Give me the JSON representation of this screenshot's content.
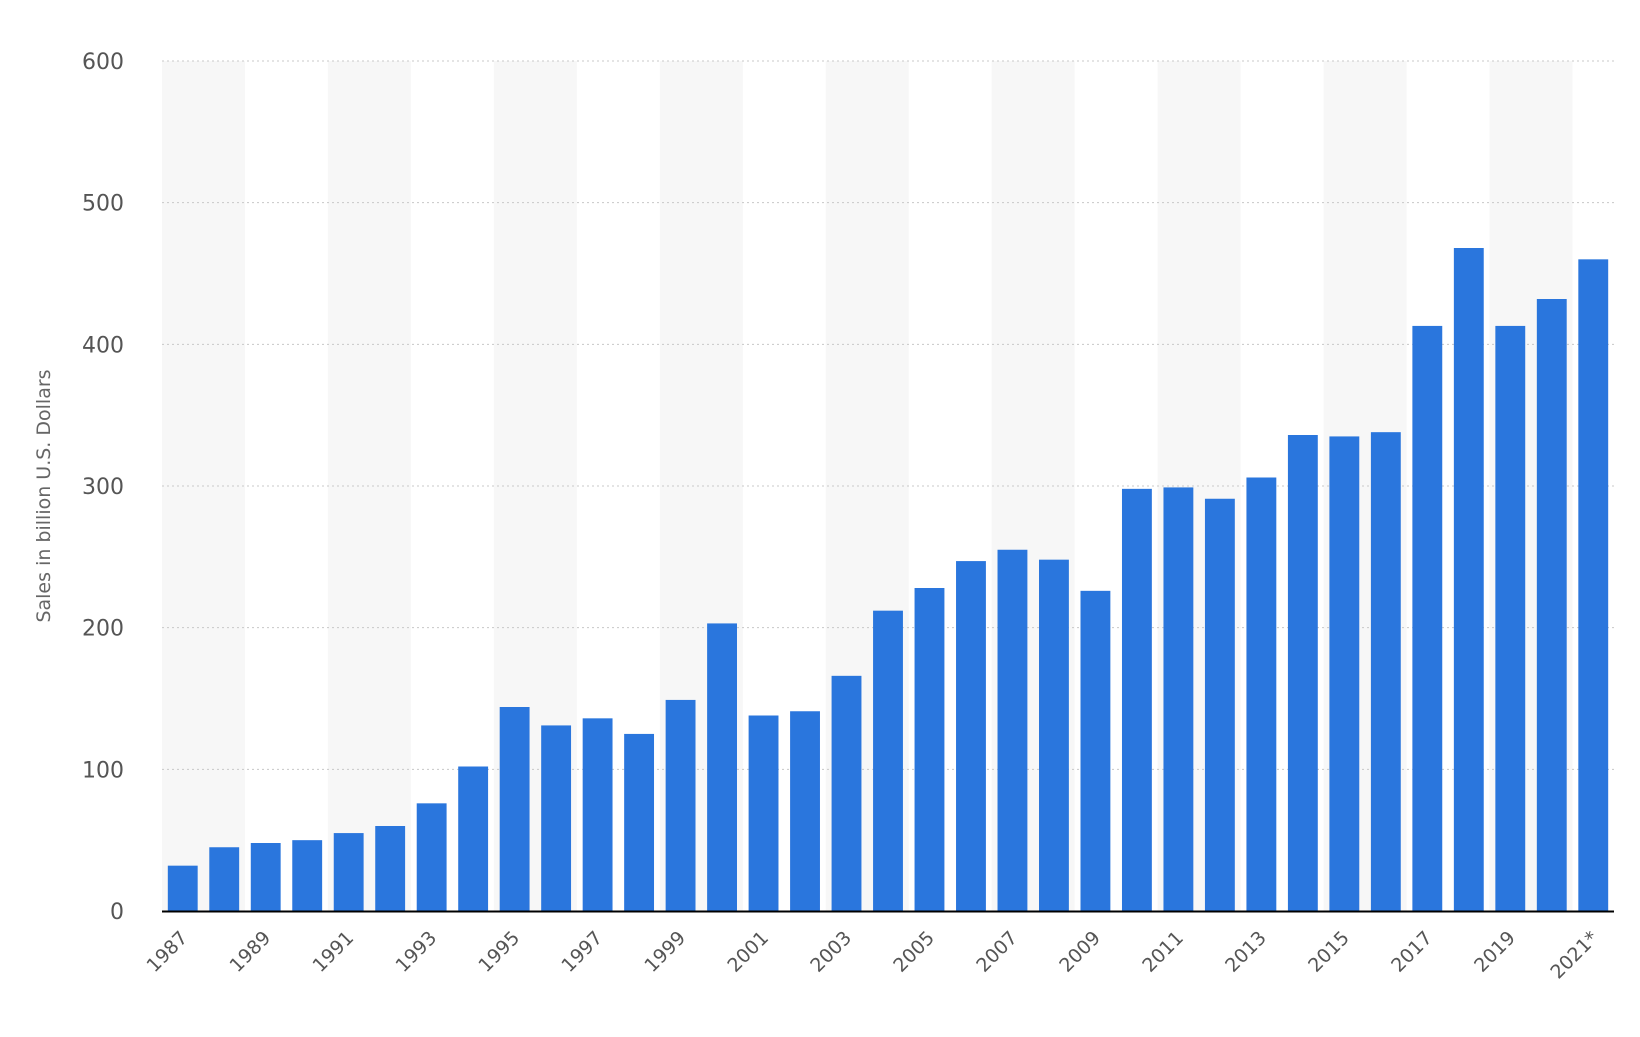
{
  "chart_data": {
    "type": "bar",
    "categories": [
      "1987",
      "1988",
      "1989",
      "1990",
      "1991",
      "1992",
      "1993",
      "1994",
      "1995",
      "1996",
      "1997",
      "1998",
      "1999",
      "2000",
      "2001",
      "2002",
      "2003",
      "2004",
      "2005",
      "2006",
      "2007",
      "2008",
      "2009",
      "2010",
      "2011",
      "2012",
      "2013",
      "2014",
      "2015",
      "2016",
      "2017",
      "2018",
      "2019",
      "2020",
      "2021*"
    ],
    "x_tick_labels": [
      "1987",
      "1989",
      "1991",
      "1993",
      "1995",
      "1997",
      "1999",
      "2001",
      "2003",
      "2005",
      "2007",
      "2009",
      "2011",
      "2013",
      "2015",
      "2017",
      "2019",
      "2021*"
    ],
    "series": [
      {
        "values": [
          32,
          45,
          48,
          50,
          55,
          60,
          76,
          102,
          144,
          131,
          136,
          125,
          149,
          203,
          138,
          141,
          166,
          212,
          228,
          247,
          255,
          248,
          226,
          298,
          299,
          291,
          306,
          336,
          335,
          338,
          413,
          468,
          413,
          432,
          460
        ]
      }
    ],
    "y_ticks": [
      0,
      100,
      200,
      300,
      400,
      500,
      600
    ],
    "ylim": [
      0,
      600
    ],
    "title": "",
    "xlabel": "",
    "ylabel": "Sales in billion U.S. Dollars",
    "grid": true,
    "colors": {
      "bar": "#2a76dd",
      "band": "#f7f7f7",
      "grid": "#c8c8c8",
      "axis": "#000000"
    }
  }
}
